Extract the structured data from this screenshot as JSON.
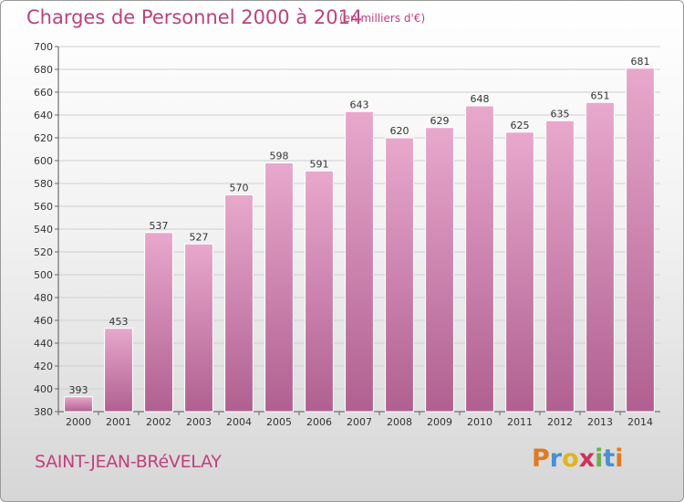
{
  "header": {
    "title": "Charges de Personnel 2000 à 2014",
    "subtitle": "(en milliers d'€)"
  },
  "footer": {
    "commune": "SAINT-JEAN-BRéVELAY",
    "logo_letters": [
      "P",
      "r",
      "o",
      "x",
      "i",
      "t",
      "i"
    ],
    "logo_colors": [
      "#e07a22",
      "#4a8fd6",
      "#e0b420",
      "#d0305a",
      "#6ab04c",
      "#4a8fd6",
      "#e07a22"
    ]
  },
  "colors": {
    "bar_top": "#e8a8cc",
    "bar_bottom": "#b06090",
    "accent": "#c0407e"
  },
  "chart_data": {
    "type": "bar",
    "categories": [
      "2000",
      "2001",
      "2002",
      "2003",
      "2004",
      "2005",
      "2006",
      "2007",
      "2008",
      "2009",
      "2010",
      "2011",
      "2012",
      "2013",
      "2014"
    ],
    "values": [
      393,
      453,
      537,
      527,
      570,
      598,
      591,
      643,
      620,
      629,
      648,
      625,
      635,
      651,
      681
    ],
    "ylim": [
      380,
      700
    ],
    "yticks": [
      380,
      400,
      420,
      440,
      460,
      480,
      500,
      520,
      540,
      560,
      580,
      600,
      620,
      640,
      660,
      680,
      700
    ],
    "grid": true
  }
}
